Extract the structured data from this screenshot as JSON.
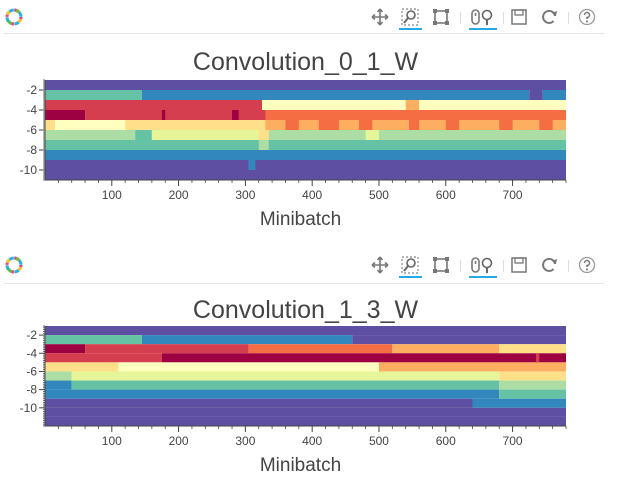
{
  "toolbar": {
    "tools": [
      "pan",
      "box-zoom",
      "box-select",
      "wheel-zoom",
      "save",
      "reset",
      "help"
    ],
    "active_tools": [
      "box-zoom",
      "wheel-zoom"
    ]
  },
  "palette": [
    "#5e4fa2",
    "#3288bd",
    "#66c2a5",
    "#abdda4",
    "#e6f598",
    "#ffffbf",
    "#fee08b",
    "#fdae61",
    "#f46d43",
    "#d53e4f",
    "#9e0142"
  ],
  "chart_data": [
    {
      "type": "heatmap",
      "title": "Convolution_0_1_W",
      "xlabel": "Minibatch",
      "ylabel": "",
      "xlim": [
        0,
        780
      ],
      "ylim": [
        -11,
        -1
      ],
      "xticks": [
        100,
        200,
        300,
        400,
        500,
        600,
        700
      ],
      "yticks": [
        -2,
        -4,
        -6,
        -8,
        -10
      ],
      "rows": [
        {
          "y": -1.5,
          "segments": [
            [
              0,
              780,
              "#5e4fa2"
            ]
          ]
        },
        {
          "y": -2.5,
          "segments": [
            [
              0,
              145,
              "#66c2a5"
            ],
            [
              145,
              725,
              "#3288bd"
            ],
            [
              725,
              745,
              "#5e4fa2"
            ],
            [
              745,
              780,
              "#3288bd"
            ]
          ]
        },
        {
          "y": -3.5,
          "segments": [
            [
              0,
              325,
              "#d53e4f"
            ],
            [
              325,
              540,
              "#ffffbf"
            ],
            [
              540,
              560,
              "#fdae61"
            ],
            [
              560,
              780,
              "#ffffbf"
            ]
          ]
        },
        {
          "y": -4.5,
          "segments": [
            [
              0,
              60,
              "#9e0142"
            ],
            [
              60,
              330,
              "#d53e4f"
            ],
            [
              330,
              780,
              "#f46d43"
            ]
          ]
        },
        {
          "y": -5.5,
          "segments": [
            [
              0,
              15,
              "#fee08b"
            ],
            [
              15,
              120,
              "#ffffbf"
            ],
            [
              120,
              330,
              "#fee08b"
            ],
            [
              330,
              780,
              "#fdae61"
            ]
          ]
        },
        {
          "y": -6.5,
          "segments": [
            [
              0,
              135,
              "#abdda4"
            ],
            [
              135,
              160,
              "#66c2a5"
            ],
            [
              160,
              330,
              "#e6f598"
            ],
            [
              330,
              780,
              "#abdda4"
            ]
          ]
        },
        {
          "y": -7.5,
          "segments": [
            [
              0,
              325,
              "#66c2a5"
            ],
            [
              325,
              780,
              "#66c2a5"
            ]
          ]
        },
        {
          "y": -8.5,
          "segments": [
            [
              0,
              315,
              "#3288bd"
            ],
            [
              315,
              780,
              "#3288bd"
            ]
          ]
        },
        {
          "y": -9.5,
          "segments": [
            [
              0,
              305,
              "#5e4fa2"
            ],
            [
              305,
              780,
              "#5e4fa2"
            ]
          ]
        },
        {
          "y": -10.5,
          "segments": [
            [
              0,
              780,
              "#5e4fa2"
            ]
          ]
        }
      ],
      "accents": [
        {
          "y": -4.5,
          "segments": [
            [
              175,
              180,
              "#9e0142"
            ],
            [
              280,
              290,
              "#9e0142"
            ],
            [
              315,
              330,
              "#d53e4f"
            ]
          ]
        },
        {
          "y": -5.5,
          "segments": [
            [
              360,
              380,
              "#f46d43"
            ],
            [
              410,
              440,
              "#f46d43"
            ],
            [
              470,
              490,
              "#f46d43"
            ],
            [
              545,
              560,
              "#f46d43"
            ],
            [
              600,
              620,
              "#f46d43"
            ],
            [
              680,
              700,
              "#f46d43"
            ],
            [
              740,
              760,
              "#f46d43"
            ]
          ]
        },
        {
          "y": -6.5,
          "segments": [
            [
              320,
              335,
              "#fee08b"
            ],
            [
              480,
              500,
              "#e6f598"
            ]
          ]
        },
        {
          "y": -7.5,
          "segments": [
            [
              320,
              335,
              "#abdda4"
            ]
          ]
        },
        {
          "y": -8.5,
          "segments": [
            [
              305,
              318,
              "#3288bd"
            ]
          ]
        },
        {
          "y": -9.5,
          "segments": [
            [
              305,
              315,
              "#3288bd"
            ]
          ]
        }
      ]
    },
    {
      "type": "heatmap",
      "title": "Convolution_1_3_W",
      "xlabel": "Minibatch",
      "ylabel": "",
      "xlim": [
        0,
        780
      ],
      "ylim": [
        -12,
        -1
      ],
      "xticks": [
        100,
        200,
        300,
        400,
        500,
        600,
        700
      ],
      "yticks": [
        -2,
        -4,
        -6,
        -8,
        -10
      ],
      "rows": [
        {
          "y": -1.5,
          "segments": [
            [
              0,
              780,
              "#5e4fa2"
            ]
          ]
        },
        {
          "y": -2.5,
          "segments": [
            [
              0,
              145,
              "#66c2a5"
            ],
            [
              145,
              460,
              "#3288bd"
            ],
            [
              460,
              780,
              "#5e4fa2"
            ]
          ]
        },
        {
          "y": -3.5,
          "segments": [
            [
              0,
              60,
              "#9e0142"
            ],
            [
              60,
              305,
              "#d53e4f"
            ],
            [
              305,
              520,
              "#f46d43"
            ],
            [
              520,
              680,
              "#fdae61"
            ],
            [
              680,
              780,
              "#fee08b"
            ]
          ]
        },
        {
          "y": -4.5,
          "segments": [
            [
              0,
              175,
              "#d53e4f"
            ],
            [
              175,
              780,
              "#9e0142"
            ]
          ]
        },
        {
          "y": -5.5,
          "segments": [
            [
              0,
              110,
              "#fee08b"
            ],
            [
              110,
              500,
              "#ffffbf"
            ],
            [
              500,
              780,
              "#fdae61"
            ]
          ]
        },
        {
          "y": -6.5,
          "segments": [
            [
              0,
              40,
              "#abdda4"
            ],
            [
              40,
              680,
              "#e6f598"
            ],
            [
              680,
              780,
              "#fee08b"
            ]
          ]
        },
        {
          "y": -7.5,
          "segments": [
            [
              0,
              40,
              "#3288bd"
            ],
            [
              40,
              680,
              "#66c2a5"
            ],
            [
              680,
              780,
              "#abdda4"
            ]
          ]
        },
        {
          "y": -8.5,
          "segments": [
            [
              0,
              680,
              "#3288bd"
            ],
            [
              680,
              780,
              "#66c2a5"
            ]
          ]
        },
        {
          "y": -9.5,
          "segments": [
            [
              0,
              640,
              "#5e4fa2"
            ],
            [
              640,
              780,
              "#3288bd"
            ]
          ]
        },
        {
          "y": -10.5,
          "segments": [
            [
              0,
              780,
              "#5e4fa2"
            ]
          ]
        },
        {
          "y": -11.5,
          "segments": [
            [
              0,
              780,
              "#5e4fa2"
            ]
          ]
        }
      ],
      "accents": [
        {
          "y": -4.5,
          "segments": [
            [
              735,
              740,
              "#d53e4f"
            ]
          ]
        }
      ]
    }
  ]
}
